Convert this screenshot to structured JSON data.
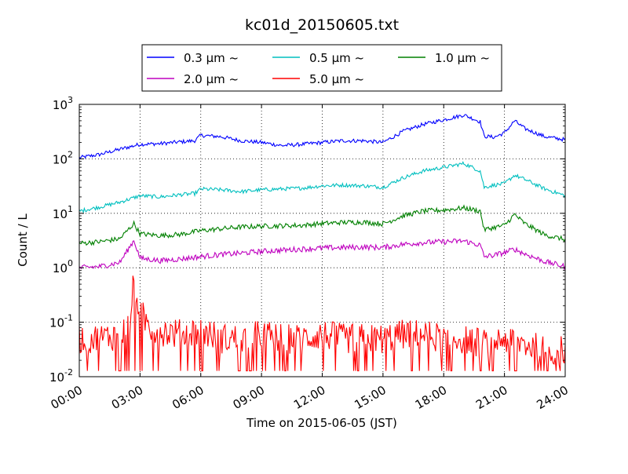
{
  "chart_data": {
    "type": "line",
    "title": "kc01d_20150605.txt",
    "xlabel": "Time on 2015-06-05 (JST)",
    "ylabel": "Count / L",
    "x_unit": "hours",
    "xlim": [
      0,
      24
    ],
    "ylim": [
      0.01,
      1000
    ],
    "yscale": "log",
    "grid": true,
    "legend_position": "top-center, above plot",
    "x_ticks": [
      {
        "value": 0,
        "label": "00:00"
      },
      {
        "value": 3,
        "label": "03:00"
      },
      {
        "value": 6,
        "label": "06:00"
      },
      {
        "value": 9,
        "label": "09:00"
      },
      {
        "value": 12,
        "label": "12:00"
      },
      {
        "value": 15,
        "label": "15:00"
      },
      {
        "value": 18,
        "label": "18:00"
      },
      {
        "value": 21,
        "label": "21:00"
      },
      {
        "value": 24,
        "label": "24:00"
      }
    ],
    "y_ticks": [
      {
        "value": 0.01,
        "base": "10",
        "exp": "-2"
      },
      {
        "value": 0.1,
        "base": "10",
        "exp": "-1"
      },
      {
        "value": 1,
        "base": "10",
        "exp": "0"
      },
      {
        "value": 10,
        "base": "10",
        "exp": "1"
      },
      {
        "value": 100,
        "base": "10",
        "exp": "2"
      },
      {
        "value": 1000,
        "base": "10",
        "exp": "3"
      }
    ],
    "series": [
      {
        "name": "0.3 µm ~",
        "color": "#0000ff",
        "x": [
          0,
          1,
          2,
          3,
          4,
          5,
          5.7,
          6,
          7,
          8,
          9,
          10,
          11,
          12,
          13,
          14,
          15,
          16,
          17,
          18,
          19,
          19.8,
          20,
          20.5,
          21,
          21.5,
          22,
          23,
          24
        ],
        "y": [
          105,
          120,
          150,
          185,
          190,
          205,
          215,
          270,
          255,
          215,
          200,
          175,
          185,
          200,
          215,
          215,
          200,
          320,
          430,
          520,
          640,
          480,
          260,
          250,
          300,
          500,
          360,
          255,
          225
        ]
      },
      {
        "name": "0.5 µm ~",
        "color": "#00bfbf",
        "x": [
          0,
          1,
          2,
          3,
          4,
          5,
          5.7,
          6,
          7,
          8,
          9,
          10,
          11,
          12,
          13,
          14,
          15,
          16,
          17,
          18,
          19,
          19.8,
          20,
          20.5,
          21,
          21.5,
          22,
          23,
          24
        ],
        "y": [
          11,
          13,
          16,
          21,
          20,
          22,
          23,
          28,
          27,
          25,
          27,
          28,
          29,
          32,
          33,
          32,
          30,
          45,
          60,
          70,
          82,
          60,
          30,
          33,
          35,
          50,
          42,
          28,
          21
        ]
      },
      {
        "name": "1.0 µm ~",
        "color": "#008000",
        "x": [
          0,
          1,
          2,
          2.7,
          3,
          4,
          5,
          6,
          7,
          8,
          9,
          10,
          11,
          12,
          13,
          14,
          15,
          16,
          17,
          18,
          19,
          19.8,
          20,
          20.5,
          21,
          21.5,
          22,
          23,
          24
        ],
        "y": [
          2.8,
          3.0,
          3.4,
          6.5,
          4.2,
          3.9,
          4.1,
          4.8,
          5.2,
          5.6,
          5.8,
          5.9,
          6.0,
          6.5,
          6.8,
          6.9,
          6.4,
          9.0,
          11.0,
          11.5,
          12.5,
          11.0,
          5.0,
          5.5,
          6.0,
          9.5,
          6.5,
          4.0,
          3.3
        ]
      },
      {
        "name": "2.0 µm ~",
        "color": "#bf00bf",
        "x": [
          0,
          1,
          2,
          2.7,
          3,
          4,
          5,
          6,
          7,
          8,
          9,
          10,
          11,
          12,
          13,
          14,
          15,
          16,
          17,
          18,
          19,
          19.8,
          20,
          20.5,
          21,
          21.5,
          22,
          23,
          24
        ],
        "y": [
          1.0,
          1.05,
          1.25,
          3.2,
          1.5,
          1.35,
          1.45,
          1.6,
          1.75,
          1.85,
          2.0,
          2.1,
          2.2,
          2.3,
          2.35,
          2.4,
          2.35,
          2.7,
          2.9,
          3.0,
          3.1,
          2.6,
          1.6,
          1.7,
          1.9,
          2.2,
          1.8,
          1.3,
          1.05
        ]
      },
      {
        "name": "5.0 µm ~",
        "color": "#ff0000",
        "x": [
          0,
          1,
          2,
          2.5,
          2.7,
          3,
          3.5,
          4,
          5,
          6,
          7,
          8,
          9,
          10,
          11,
          12,
          13,
          14,
          15,
          16,
          17,
          18,
          19,
          20,
          21,
          22,
          23,
          24
        ],
        "y": [
          0.05,
          0.05,
          0.06,
          0.1,
          0.6,
          0.15,
          0.08,
          0.07,
          0.06,
          0.07,
          0.05,
          0.05,
          0.06,
          0.05,
          0.05,
          0.06,
          0.05,
          0.05,
          0.05,
          0.06,
          0.06,
          0.05,
          0.05,
          0.04,
          0.05,
          0.04,
          0.03,
          0.03
        ]
      }
    ]
  }
}
